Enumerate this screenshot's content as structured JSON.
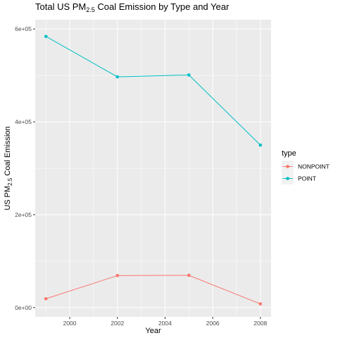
{
  "chart_data": {
    "type": "line",
    "title_prefix": "Total US  PM",
    "title_subscript": "2.5",
    "title_suffix": "  Coal Emission by Type and Year",
    "xlabel": "Year",
    "ylabel_prefix": "US  PM",
    "ylabel_subscript": "2.5",
    "ylabel_suffix": "  Coal Emission",
    "x_ticks": [
      2000,
      2002,
      2004,
      2006,
      2008
    ],
    "y_ticks": [
      0,
      200000,
      400000,
      600000
    ],
    "y_tick_labels": [
      "0e+00",
      "2e+05",
      "4e+05",
      "6e+05"
    ],
    "xlim": [
      1998.55,
      2008.45
    ],
    "ylim": [
      -20000,
      620000
    ],
    "grid": true,
    "legend_title": "type",
    "legend_position": "right",
    "series": [
      {
        "name": "NONPOINT",
        "color": "#F8766D",
        "x": [
          1999,
          2002,
          2005,
          2008
        ],
        "y": [
          19000,
          69000,
          69500,
          8000
        ]
      },
      {
        "name": "POINT",
        "color": "#00BFC4",
        "x": [
          1999,
          2002,
          2005,
          2008
        ],
        "y": [
          584000,
          497000,
          501000,
          350000
        ]
      }
    ]
  }
}
